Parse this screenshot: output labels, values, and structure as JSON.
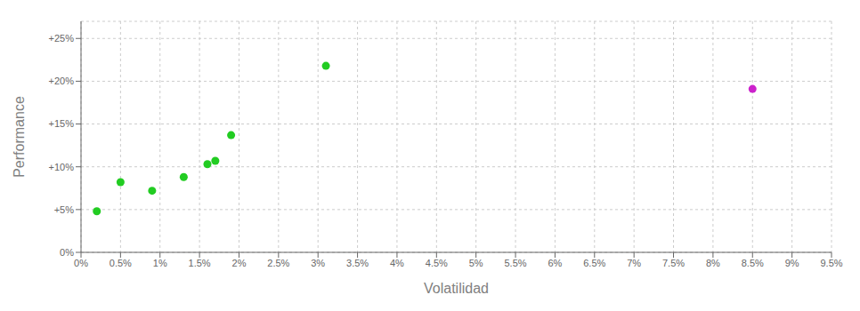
{
  "chart_data": {
    "type": "scatter",
    "xlabel": "Volatilidad",
    "ylabel": "Performance",
    "series": [
      {
        "color": "#22cc22",
        "x": [
          0.002,
          0.005,
          0.009,
          0.013,
          0.016,
          0.017,
          0.019,
          0.031
        ],
        "values": [
          0.048,
          0.082,
          0.072,
          0.088,
          0.103,
          0.107,
          0.137,
          0.218
        ]
      },
      {
        "color": "#cc22cc",
        "x": [
          0.085
        ],
        "values": [
          0.191
        ]
      }
    ],
    "xlim": [
      0,
      0.095
    ],
    "ylim": [
      0,
      0.27
    ],
    "xticks": [
      {
        "value": 0.0,
        "label": "0%"
      },
      {
        "value": 0.005,
        "label": "0.5%"
      },
      {
        "value": 0.01,
        "label": "1%"
      },
      {
        "value": 0.015,
        "label": "1.5%"
      },
      {
        "value": 0.02,
        "label": "2%"
      },
      {
        "value": 0.025,
        "label": "2.5%"
      },
      {
        "value": 0.03,
        "label": "3%"
      },
      {
        "value": 0.035,
        "label": "3.5%"
      },
      {
        "value": 0.04,
        "label": "4%"
      },
      {
        "value": 0.045,
        "label": "4.5%"
      },
      {
        "value": 0.05,
        "label": "5%"
      },
      {
        "value": 0.055,
        "label": "5.5%"
      },
      {
        "value": 0.06,
        "label": "6%"
      },
      {
        "value": 0.065,
        "label": "6.5%"
      },
      {
        "value": 0.07,
        "label": "7%"
      },
      {
        "value": 0.075,
        "label": "7.5%"
      },
      {
        "value": 0.08,
        "label": "8%"
      },
      {
        "value": 0.085,
        "label": "8.5%"
      },
      {
        "value": 0.09,
        "label": "9%"
      },
      {
        "value": 0.095,
        "label": "9.5%"
      }
    ],
    "yticks": [
      {
        "value": 0.0,
        "label": "0%"
      },
      {
        "value": 0.05,
        "label": "+5%"
      },
      {
        "value": 0.1,
        "label": "+10%"
      },
      {
        "value": 0.15,
        "label": "+15%"
      },
      {
        "value": 0.2,
        "label": "+20%"
      },
      {
        "value": 0.25,
        "label": "+25%"
      }
    ],
    "grid": true
  }
}
